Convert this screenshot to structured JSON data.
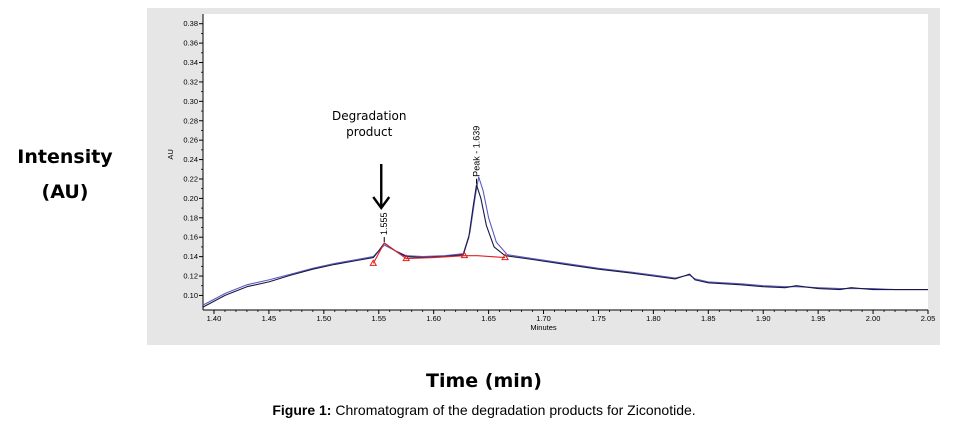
{
  "y_title_line1": "Intensity",
  "y_title_line2": "(AU)",
  "x_title": "Time (min)",
  "caption_bold": "Figure 1:",
  "caption_text": " Chromatogram of the degradation products for Ziconotide.",
  "chart_data": {
    "type": "line",
    "inner_ylabel": "AU",
    "inner_xlabel": "Minutes",
    "xlim": [
      1.39,
      2.05
    ],
    "ylim": [
      0.085,
      0.39
    ],
    "x_ticks": [
      1.4,
      1.45,
      1.5,
      1.55,
      1.6,
      1.65,
      1.7,
      1.75,
      1.8,
      1.85,
      1.9,
      1.95,
      2.0,
      2.05
    ],
    "x_tick_labels": [
      "1.40",
      "1.45",
      "1.50",
      "1.55",
      "1.60",
      "1.65",
      "1.70",
      "1.75",
      "1.80",
      "1.85",
      "1.90",
      "1.95",
      "2.00",
      "2.05"
    ],
    "y_ticks": [
      0.1,
      0.12,
      0.14,
      0.16,
      0.18,
      0.2,
      0.22,
      0.24,
      0.26,
      0.28,
      0.3,
      0.32,
      0.34,
      0.36,
      0.38
    ],
    "y_tick_labels": [
      "0.10",
      "0.12",
      "0.14",
      "0.16",
      "0.18",
      "0.20",
      "0.22",
      "0.24",
      "0.26",
      "0.28",
      "0.30",
      "0.32",
      "0.34",
      "0.36",
      "0.38"
    ],
    "series": [
      {
        "color": "#1a1a40",
        "x": [
          1.39,
          1.41,
          1.43,
          1.45,
          1.47,
          1.49,
          1.51,
          1.53,
          1.545,
          1.55,
          1.555,
          1.565,
          1.575,
          1.59,
          1.61,
          1.627,
          1.632,
          1.636,
          1.639,
          1.643,
          1.648,
          1.655,
          1.665,
          1.69,
          1.72,
          1.75,
          1.78,
          1.8,
          1.82,
          1.828,
          1.833,
          1.838,
          1.85,
          1.88,
          1.9,
          1.92,
          1.93,
          1.95,
          1.97,
          1.98,
          2.0,
          2.02,
          2.05
        ],
        "y": [
          0.088,
          0.1,
          0.109,
          0.114,
          0.121,
          0.127,
          0.132,
          0.136,
          0.139,
          0.146,
          0.154,
          0.146,
          0.14,
          0.139,
          0.14,
          0.142,
          0.16,
          0.192,
          0.214,
          0.2,
          0.172,
          0.15,
          0.141,
          0.137,
          0.132,
          0.127,
          0.123,
          0.12,
          0.117,
          0.12,
          0.122,
          0.116,
          0.113,
          0.111,
          0.109,
          0.108,
          0.11,
          0.107,
          0.106,
          0.108,
          0.106,
          0.106,
          0.106
        ]
      },
      {
        "color": "#5a5ac8",
        "x": [
          1.39,
          1.41,
          1.43,
          1.45,
          1.47,
          1.49,
          1.51,
          1.53,
          1.545,
          1.55,
          1.555,
          1.565,
          1.575,
          1.59,
          1.61,
          1.627,
          1.633,
          1.638,
          1.641,
          1.645,
          1.65,
          1.657,
          1.667,
          1.69,
          1.72,
          1.75,
          1.78,
          1.8,
          1.82,
          1.828,
          1.833,
          1.838,
          1.85,
          1.88,
          1.9,
          1.92,
          1.93,
          1.95,
          1.97,
          1.98,
          2.0,
          2.02,
          2.05
        ],
        "y": [
          0.09,
          0.102,
          0.111,
          0.116,
          0.122,
          0.128,
          0.133,
          0.137,
          0.14,
          0.146,
          0.152,
          0.146,
          0.141,
          0.14,
          0.141,
          0.143,
          0.165,
          0.203,
          0.222,
          0.208,
          0.18,
          0.155,
          0.142,
          0.138,
          0.133,
          0.128,
          0.124,
          0.121,
          0.118,
          0.12,
          0.121,
          0.117,
          0.114,
          0.112,
          0.11,
          0.109,
          0.109,
          0.108,
          0.107,
          0.107,
          0.107,
          0.106,
          0.106
        ]
      }
    ],
    "baseline": {
      "color": "#e02020",
      "x": [
        1.545,
        1.555,
        1.575,
        1.6,
        1.628,
        1.64,
        1.665
      ],
      "y": [
        0.133,
        0.154,
        0.138,
        0.139,
        0.141,
        0.141,
        0.139
      ]
    },
    "baseline_markers": {
      "x": [
        1.545,
        1.575,
        1.628,
        1.665
      ],
      "y": [
        0.133,
        0.138,
        0.141,
        0.139
      ]
    },
    "peak_labels": [
      {
        "text": "1.555",
        "x": 1.555,
        "y": 0.154
      },
      {
        "text": "Peak - 1.639",
        "x": 1.639,
        "y": 0.214
      }
    ],
    "annotation": {
      "line1": "Degradation",
      "line2": "product",
      "arrow_to_x": 1.555
    }
  }
}
